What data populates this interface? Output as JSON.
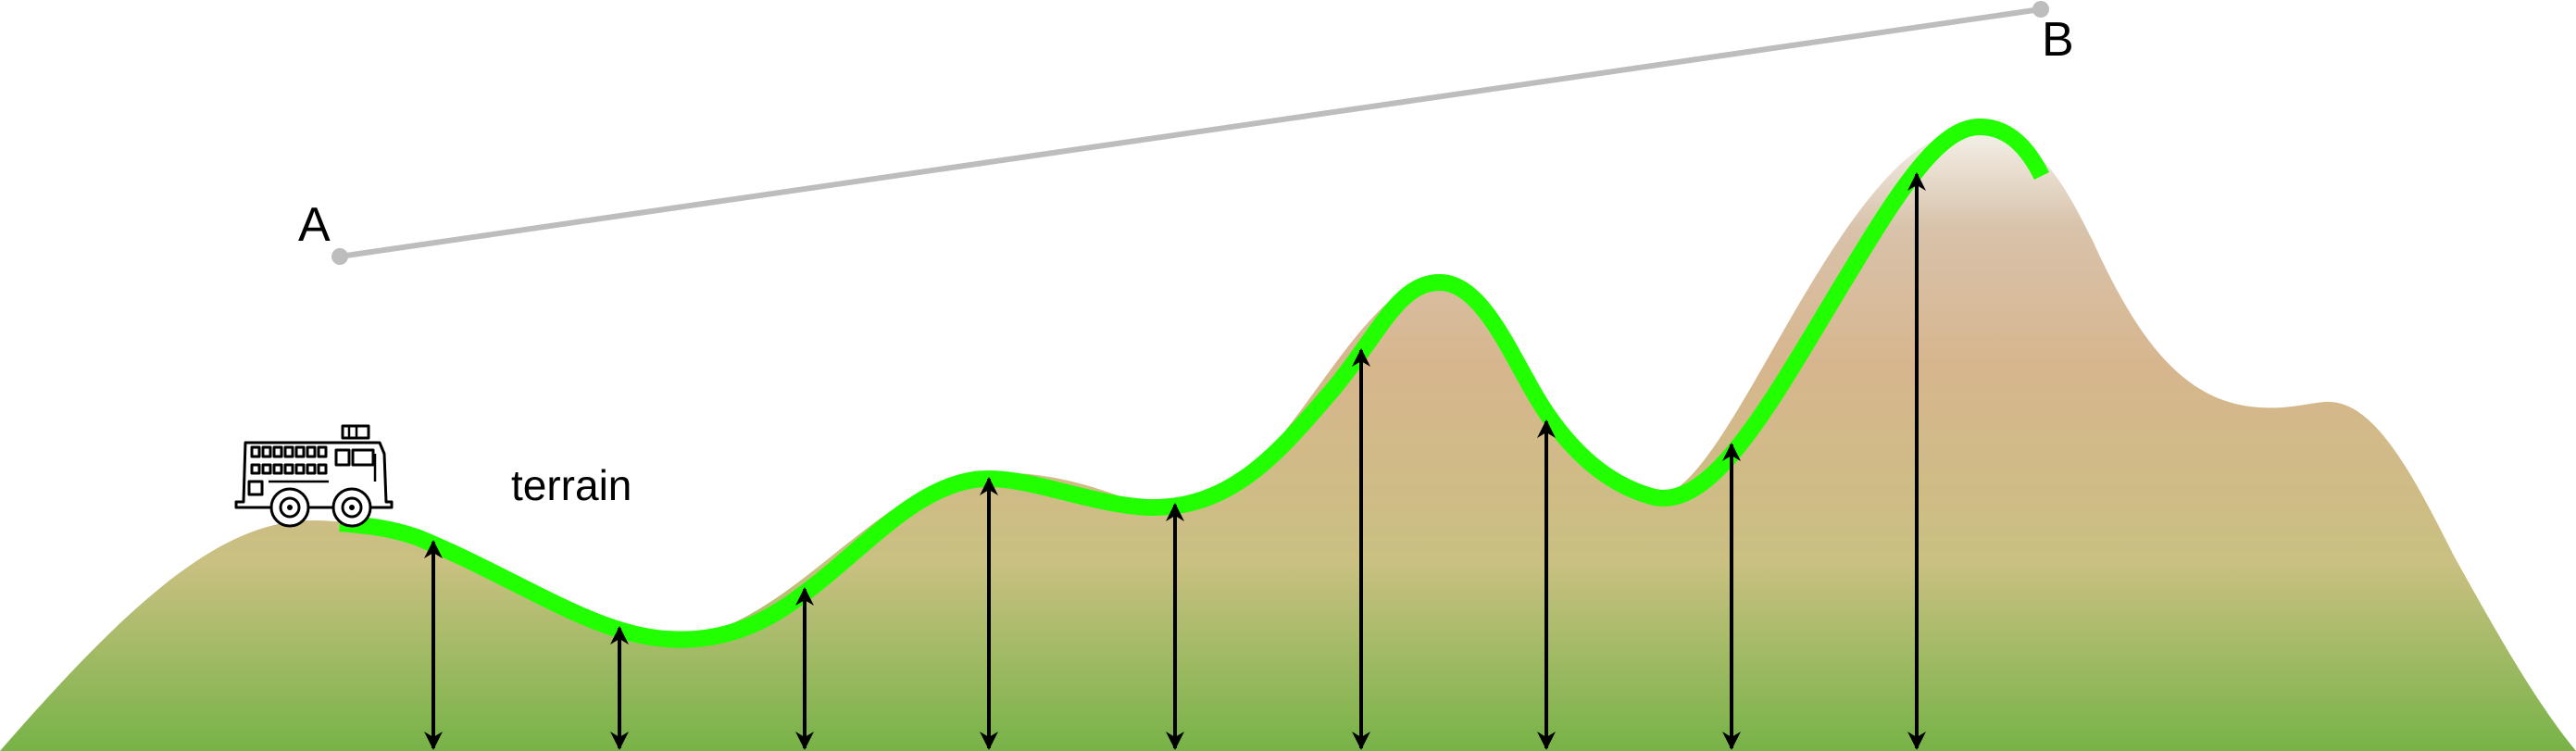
{
  "labels": {
    "point_a": "A",
    "point_b": "B",
    "terrain": "terrain"
  },
  "colors": {
    "path_line": "#22ff00",
    "sight_line": "#bdbdbd",
    "arrow": "#000000",
    "terrain_peak": "#f4f1ea",
    "terrain_mid": "#d7b68e",
    "terrain_low": "#c9c081",
    "terrain_base": "#77b347"
  },
  "icons": {
    "vehicle": "fire-truck-icon"
  },
  "height_arrow_count": 9
}
